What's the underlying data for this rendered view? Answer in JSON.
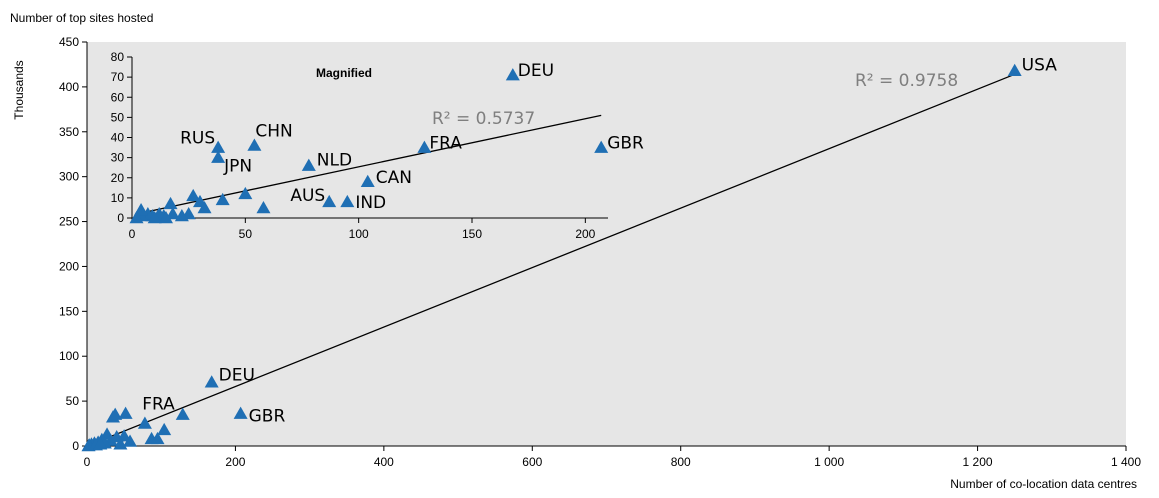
{
  "colors": {
    "plot_bg": "#e6e6e6",
    "marker": "#1f6fb4",
    "trend": "#000000",
    "r2_text": "#7f7f7f"
  },
  "chart_data": [
    {
      "type": "scatter",
      "title": "",
      "xlabel": "Number of co-location data centres",
      "ylabel": "Number of top sites hosted",
      "yunit": "Thousands",
      "xlim": [
        0,
        1400
      ],
      "ylim": [
        0,
        450
      ],
      "xticks": [
        0,
        200,
        400,
        600,
        800,
        1000,
        1200,
        1400
      ],
      "xtick_labels": [
        "0",
        "200",
        "400",
        "600",
        "800",
        "1 000",
        "1 200",
        "1 400"
      ],
      "yticks": [
        0,
        50,
        100,
        150,
        200,
        250,
        300,
        350,
        400,
        450
      ],
      "grid": false,
      "marker": "triangle",
      "r_squared_label": "R² = 0.9758",
      "trendline": {
        "x": [
          0,
          1250
        ],
        "y": [
          0,
          414
        ]
      },
      "points": [
        {
          "x": 1250,
          "y": 418,
          "label": "USA"
        },
        {
          "x": 168,
          "y": 71,
          "label": "DEU"
        },
        {
          "x": 129,
          "y": 35,
          "label": "FRA"
        },
        {
          "x": 207,
          "y": 36,
          "label": "GBR"
        },
        {
          "x": 35,
          "y": 32,
          "label": ""
        },
        {
          "x": 38,
          "y": 35,
          "label": ""
        },
        {
          "x": 52,
          "y": 36,
          "label": ""
        },
        {
          "x": 78,
          "y": 25,
          "label": ""
        },
        {
          "x": 104,
          "y": 18,
          "label": ""
        },
        {
          "x": 87,
          "y": 8,
          "label": ""
        },
        {
          "x": 95,
          "y": 8,
          "label": ""
        },
        {
          "x": 58,
          "y": 5,
          "label": ""
        },
        {
          "x": 50,
          "y": 11,
          "label": ""
        },
        {
          "x": 27,
          "y": 13,
          "label": ""
        },
        {
          "x": 32,
          "y": 6,
          "label": ""
        },
        {
          "x": 40,
          "y": 10,
          "label": ""
        },
        {
          "x": 20,
          "y": 7,
          "label": ""
        },
        {
          "x": 15,
          "y": 4,
          "label": ""
        },
        {
          "x": 10,
          "y": 3,
          "label": ""
        },
        {
          "x": 6,
          "y": 2,
          "label": ""
        },
        {
          "x": 3,
          "y": 1,
          "label": ""
        },
        {
          "x": 2,
          "y": 0,
          "label": ""
        },
        {
          "x": 12,
          "y": 1,
          "label": ""
        },
        {
          "x": 24,
          "y": 3,
          "label": ""
        },
        {
          "x": 18,
          "y": 2,
          "label": ""
        },
        {
          "x": 45,
          "y": 2,
          "label": ""
        }
      ]
    },
    {
      "type": "scatter",
      "title": "Magnified",
      "xlabel": "",
      "ylabel": "",
      "xlim": [
        0,
        210
      ],
      "ylim": [
        0,
        80
      ],
      "xticks": [
        0,
        50,
        100,
        150,
        200
      ],
      "xtick_labels": [
        "0",
        "50",
        "100",
        "150",
        "200"
      ],
      "yticks": [
        0,
        10,
        20,
        30,
        40,
        50,
        60,
        70,
        80
      ],
      "grid": false,
      "marker": "triangle",
      "r_squared_label": "R² = 0.5737",
      "trendline": {
        "x": [
          2,
          207
        ],
        "y": [
          2,
          51
        ]
      },
      "points": [
        {
          "x": 168,
          "y": 71,
          "label": "DEU"
        },
        {
          "x": 129,
          "y": 35,
          "label": "FRA"
        },
        {
          "x": 207,
          "y": 35,
          "label": "GBR"
        },
        {
          "x": 38,
          "y": 35,
          "label": "RUS"
        },
        {
          "x": 54,
          "y": 36,
          "label": "CHN"
        },
        {
          "x": 38,
          "y": 30,
          "label": "JPN"
        },
        {
          "x": 78,
          "y": 26,
          "label": "NLD"
        },
        {
          "x": 104,
          "y": 18,
          "label": "CAN"
        },
        {
          "x": 87,
          "y": 8,
          "label": "AUS"
        },
        {
          "x": 95,
          "y": 8,
          "label": "IND"
        },
        {
          "x": 50,
          "y": 12,
          "label": ""
        },
        {
          "x": 27,
          "y": 11,
          "label": ""
        },
        {
          "x": 40,
          "y": 9,
          "label": ""
        },
        {
          "x": 58,
          "y": 5,
          "label": ""
        },
        {
          "x": 17,
          "y": 7,
          "label": ""
        },
        {
          "x": 30,
          "y": 8,
          "label": ""
        },
        {
          "x": 32,
          "y": 5,
          "label": ""
        },
        {
          "x": 25,
          "y": 2,
          "label": ""
        },
        {
          "x": 22,
          "y": 1,
          "label": ""
        },
        {
          "x": 18,
          "y": 2,
          "label": ""
        },
        {
          "x": 14,
          "y": 1,
          "label": ""
        },
        {
          "x": 12,
          "y": 2,
          "label": ""
        },
        {
          "x": 9,
          "y": 1,
          "label": ""
        },
        {
          "x": 7,
          "y": 2,
          "label": ""
        },
        {
          "x": 4,
          "y": 1,
          "label": ""
        },
        {
          "x": 4,
          "y": 4,
          "label": ""
        },
        {
          "x": 2,
          "y": 0,
          "label": ""
        },
        {
          "x": 10,
          "y": 0,
          "label": ""
        },
        {
          "x": 15,
          "y": 0,
          "label": ""
        }
      ]
    }
  ]
}
